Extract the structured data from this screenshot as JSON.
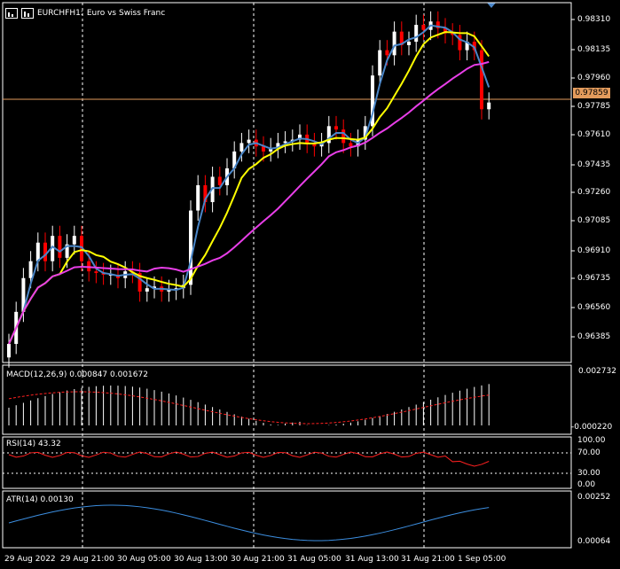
{
  "header": {
    "symbol": "EURCHF",
    "timeframe": "H1:",
    "description": "Euro vs Swiss Franc"
  },
  "current_price": "0.97859",
  "price_axis": [
    "0.98310",
    "0.98135",
    "0.97960",
    "0.97785",
    "0.97610",
    "0.97435",
    "0.97260",
    "0.97085",
    "0.96910",
    "0.96735",
    "0.96560",
    "0.96385"
  ],
  "time_axis": [
    "29 Aug 2022",
    "29 Aug 21:00",
    "30 Aug 05:00",
    "30 Aug 13:00",
    "30 Aug 21:00",
    "31 Aug 05:00",
    "31 Aug 13:00",
    "31 Aug 21:00",
    "1 Sep 05:00"
  ],
  "macd": {
    "label": "MACD(12,26,9) 0.000847 0.001672",
    "axis_top": "0.002732",
    "axis_bottom": "-0.000220"
  },
  "rsi": {
    "label": "RSI(14) 43.32",
    "levels": [
      "100.00",
      "70.00",
      "30.00",
      "0.00"
    ]
  },
  "atr": {
    "label": "ATR(14) 0.00130",
    "axis_top": "0.00252",
    "axis_bottom": "0.00064"
  },
  "colors": {
    "bull": "#ffffff",
    "bear": "#ff0000",
    "ma_fast": "#4a86c8",
    "ma_mid": "#ffff00",
    "ma_slow": "#e83ee8",
    "price_line": "#e39b5c",
    "signal": "#ff2020",
    "rsi": "#ff2020",
    "atr": "#3c8ee0"
  },
  "chart_data": {
    "type": "candlestick",
    "series_close": [
      0.9641,
      0.966,
      0.968,
      0.969,
      0.9701,
      0.969,
      0.9705,
      0.9692,
      0.97,
      0.9705,
      0.969,
      0.9684,
      0.9683,
      0.9682,
      0.9682,
      0.968,
      0.9684,
      0.9683,
      0.9672,
      0.9674,
      0.9675,
      0.9672,
      0.9673,
      0.9674,
      0.9676,
      0.972,
      0.9735,
      0.9725,
      0.974,
      0.9735,
      0.9745,
      0.9755,
      0.976,
      0.9762,
      0.9758,
      0.9755,
      0.9757,
      0.976,
      0.9761,
      0.9762,
      0.9765,
      0.976,
      0.9758,
      0.976,
      0.977,
      0.9768,
      0.976,
      0.9758,
      0.9762,
      0.977,
      0.98,
      0.9815,
      0.9812,
      0.9826,
      0.9818,
      0.982,
      0.983,
      0.9827,
      0.9832,
      0.9828,
      0.9825,
      0.9824,
      0.9815,
      0.982,
      0.9815,
      0.978,
      0.9784
    ],
    "ylim": [
      0.963,
      0.984
    ]
  }
}
